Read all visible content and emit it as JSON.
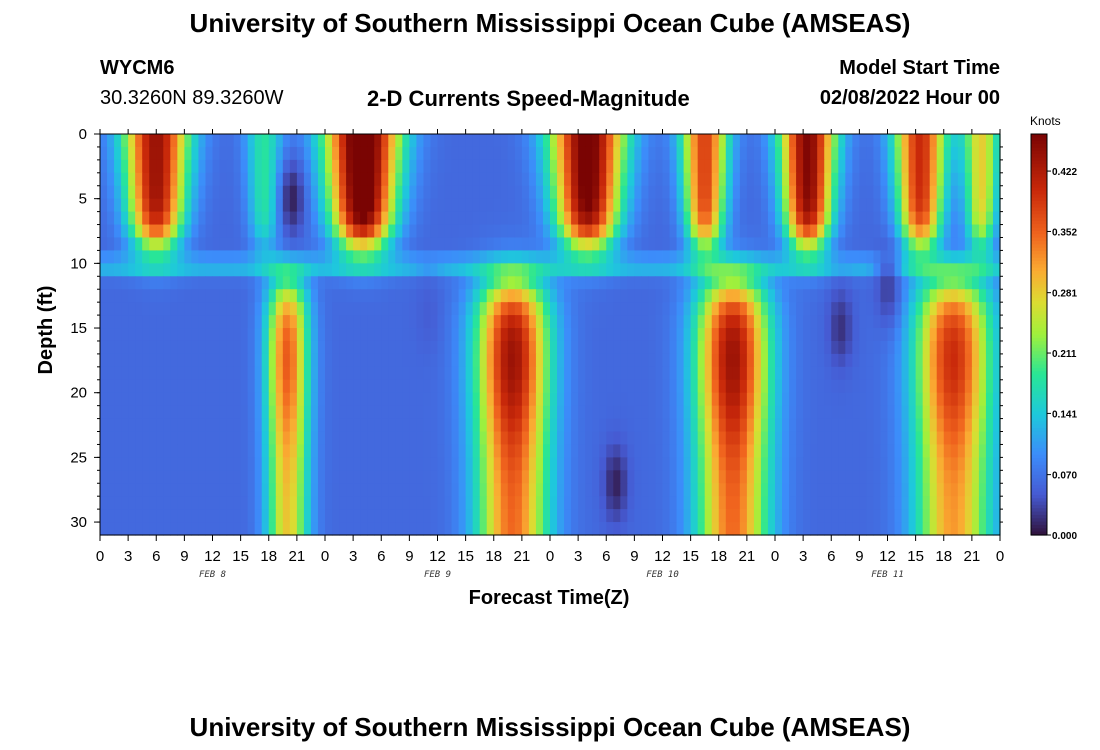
{
  "page": {
    "title": "University of Southern Mississippi Ocean Cube (AMSEAS)",
    "footer_title": "University of Southern Mississippi Ocean Cube (AMSEAS)",
    "station_id": "WYCM6",
    "coordinates": "30.3260N  89.3260W",
    "subtitle": "2-D Currents Speed-Magnitude",
    "model_start_label": "Model Start Time",
    "model_start_value": "02/08/2022 Hour 00"
  },
  "chart_data": {
    "type": "heatmap",
    "title": "2-D Currents Speed-Magnitude",
    "xlabel": "Forecast Time(Z)",
    "ylabel": "Depth (ft)",
    "x_range_hours": [
      0,
      96
    ],
    "x_tick_step_hours": 3,
    "x_tick_labels": [
      "0",
      "3",
      "6",
      "9",
      "12",
      "15",
      "18",
      "21",
      "0",
      "3",
      "6",
      "9",
      "12",
      "15",
      "18",
      "21",
      "0",
      "3",
      "6",
      "9",
      "12",
      "15",
      "18",
      "21",
      "0",
      "3",
      "6",
      "9",
      "12",
      "15",
      "18",
      "21",
      "0"
    ],
    "date_labels": [
      {
        "text": "FEB 8",
        "hour": 12
      },
      {
        "text": "FEB 9",
        "hour": 36
      },
      {
        "text": "FEB 10",
        "hour": 60
      },
      {
        "text": "FEB 11",
        "hour": 84
      }
    ],
    "y_range_ft": [
      0,
      31
    ],
    "y_ticks": [
      "0",
      "5",
      "10",
      "15",
      "20",
      "25",
      "30"
    ],
    "y_tick_values": [
      0,
      5,
      10,
      15,
      20,
      25,
      30
    ],
    "colorbar": {
      "unit": "Knots",
      "range": [
        0,
        0.465
      ],
      "tick_labels": [
        "0.422",
        "0.352",
        "0.281",
        "0.211",
        "0.141",
        "0.070",
        "0.000"
      ],
      "tick_values": [
        0.422,
        0.352,
        0.281,
        0.211,
        0.141,
        0.07,
        0.0
      ]
    },
    "surface_peaks": [
      {
        "hour": 6,
        "width_h": 3.5,
        "amp": 0.38
      },
      {
        "hour": 17.5,
        "width_h": 2.0,
        "amp": 0.12
      },
      {
        "hour": 28,
        "width_h": 4.0,
        "amp": 0.45
      },
      {
        "hour": 52,
        "width_h": 4.0,
        "amp": 0.42
      },
      {
        "hour": 64.5,
        "width_h": 2.5,
        "amp": 0.32
      },
      {
        "hour": 75.5,
        "width_h": 3.0,
        "amp": 0.4
      },
      {
        "hour": 87.5,
        "width_h": 2.8,
        "amp": 0.34
      },
      {
        "hour": 94,
        "width_h": 2.0,
        "amp": 0.22
      }
    ],
    "deep_peaks": [
      {
        "hour": 20,
        "width_h": 2.2,
        "amp": 0.3
      },
      {
        "hour": 44,
        "width_h": 3.8,
        "amp": 0.38
      },
      {
        "hour": 67.5,
        "width_h": 3.8,
        "amp": 0.38
      },
      {
        "hour": 91,
        "width_h": 4.0,
        "amp": 0.34
      }
    ],
    "low_spots": [
      {
        "hour": 20.5,
        "depth_ft": 5,
        "value": 0.01
      },
      {
        "hour": 55,
        "depth_ft": 27,
        "value": 0.01
      },
      {
        "hour": 79,
        "depth_ft": 15,
        "value": 0.02
      },
      {
        "hour": 84,
        "depth_ft": 12,
        "value": 0.03
      },
      {
        "hour": 35,
        "depth_ft": 14,
        "value": 0.05
      }
    ]
  }
}
